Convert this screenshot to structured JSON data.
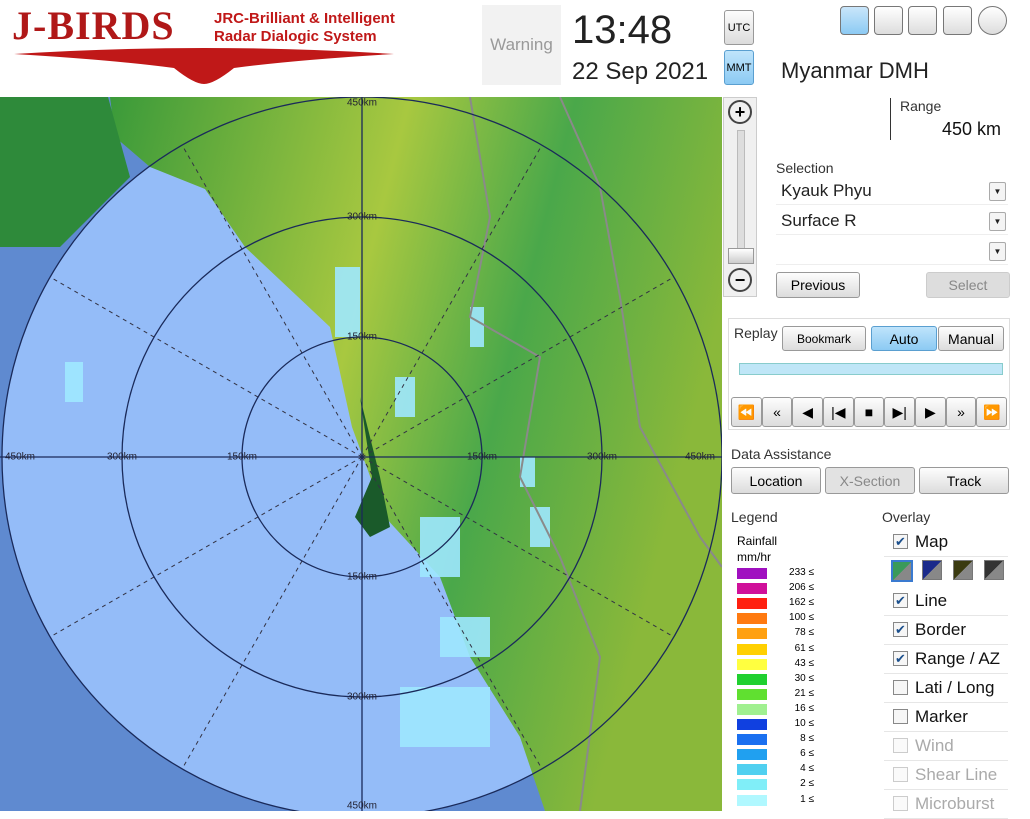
{
  "header": {
    "logo": "J-BIRDS",
    "subtitle_line1": "JRC-Brilliant & Intelligent",
    "subtitle_line2": "Radar Dialogic System",
    "warning": "Warning",
    "time": "13:48",
    "date": "22 Sep 2021",
    "time_buttons": [
      "UTC",
      "MMT"
    ],
    "active_time_button": 1
  },
  "station": "Myanmar DMH",
  "range": {
    "label": "Range",
    "value": "450 km"
  },
  "selection": {
    "label": "Selection",
    "dropdowns": [
      "Kyauk Phyu",
      "Surface R"
    ]
  },
  "selection_buttons": [
    {
      "label": "Previous",
      "enabled": true
    },
    {
      "label": "Select",
      "enabled": false
    }
  ],
  "replay": {
    "label": "Replay",
    "buttons": [
      "Bookmark",
      "Auto",
      "Manual"
    ],
    "active": 1
  },
  "data_assistance": {
    "label": "Data Assistance",
    "buttons": [
      {
        "label": "Location",
        "enabled": true
      },
      {
        "label": "X-Section",
        "enabled": false
      },
      {
        "label": "Track",
        "enabled": true
      }
    ]
  },
  "legend": {
    "title": "Legend",
    "quantity": "Rainfall",
    "unit": "mm/hr",
    "items": [
      {
        "label": "233 ≤",
        "color": "#a010c0"
      },
      {
        "label": "206 ≤",
        "color": "#d0109a"
      },
      {
        "label": "162 ≤",
        "color": "#ff2010"
      },
      {
        "label": "100 ≤",
        "color": "#ff7a10"
      },
      {
        "label": "78 ≤",
        "color": "#ffa010"
      },
      {
        "label": "61 ≤",
        "color": "#ffd000"
      },
      {
        "label": "43 ≤",
        "color": "#ffff40"
      },
      {
        "label": "30 ≤",
        "color": "#20d030"
      },
      {
        "label": "21 ≤",
        "color": "#60e030"
      },
      {
        "label": "16 ≤",
        "color": "#a0f090"
      },
      {
        "label": "10 ≤",
        "color": "#1040e0"
      },
      {
        "label": "8 ≤",
        "color": "#1a70f0"
      },
      {
        "label": "6 ≤",
        "color": "#20a0f0"
      },
      {
        "label": "4 ≤",
        "color": "#50d0f0"
      },
      {
        "label": "2 ≤",
        "color": "#80eef8"
      },
      {
        "label": "1 ≤",
        "color": "#b0f8ff"
      }
    ]
  },
  "overlay": {
    "title": "Overlay",
    "items": [
      {
        "label": "Map",
        "checked": true,
        "enabled": true
      },
      {
        "label": "Line",
        "checked": true,
        "enabled": true
      },
      {
        "label": "Border",
        "checked": true,
        "enabled": true
      },
      {
        "label": "Range / AZ",
        "checked": true,
        "enabled": true
      },
      {
        "label": "Lati / Long",
        "checked": false,
        "enabled": true
      },
      {
        "label": "Marker",
        "checked": false,
        "enabled": true
      },
      {
        "label": "Wind",
        "checked": false,
        "enabled": false
      },
      {
        "label": "Shear Line",
        "checked": false,
        "enabled": false
      },
      {
        "label": "Microburst",
        "checked": false,
        "enabled": false
      }
    ]
  },
  "map": {
    "ring_labels_vertical": [
      "450km",
      "300km",
      "150km",
      "150km",
      "300km",
      "450km"
    ],
    "ring_labels_horizontal": [
      "450km",
      "300km",
      "150km",
      "150km",
      "300km",
      "450km"
    ]
  }
}
